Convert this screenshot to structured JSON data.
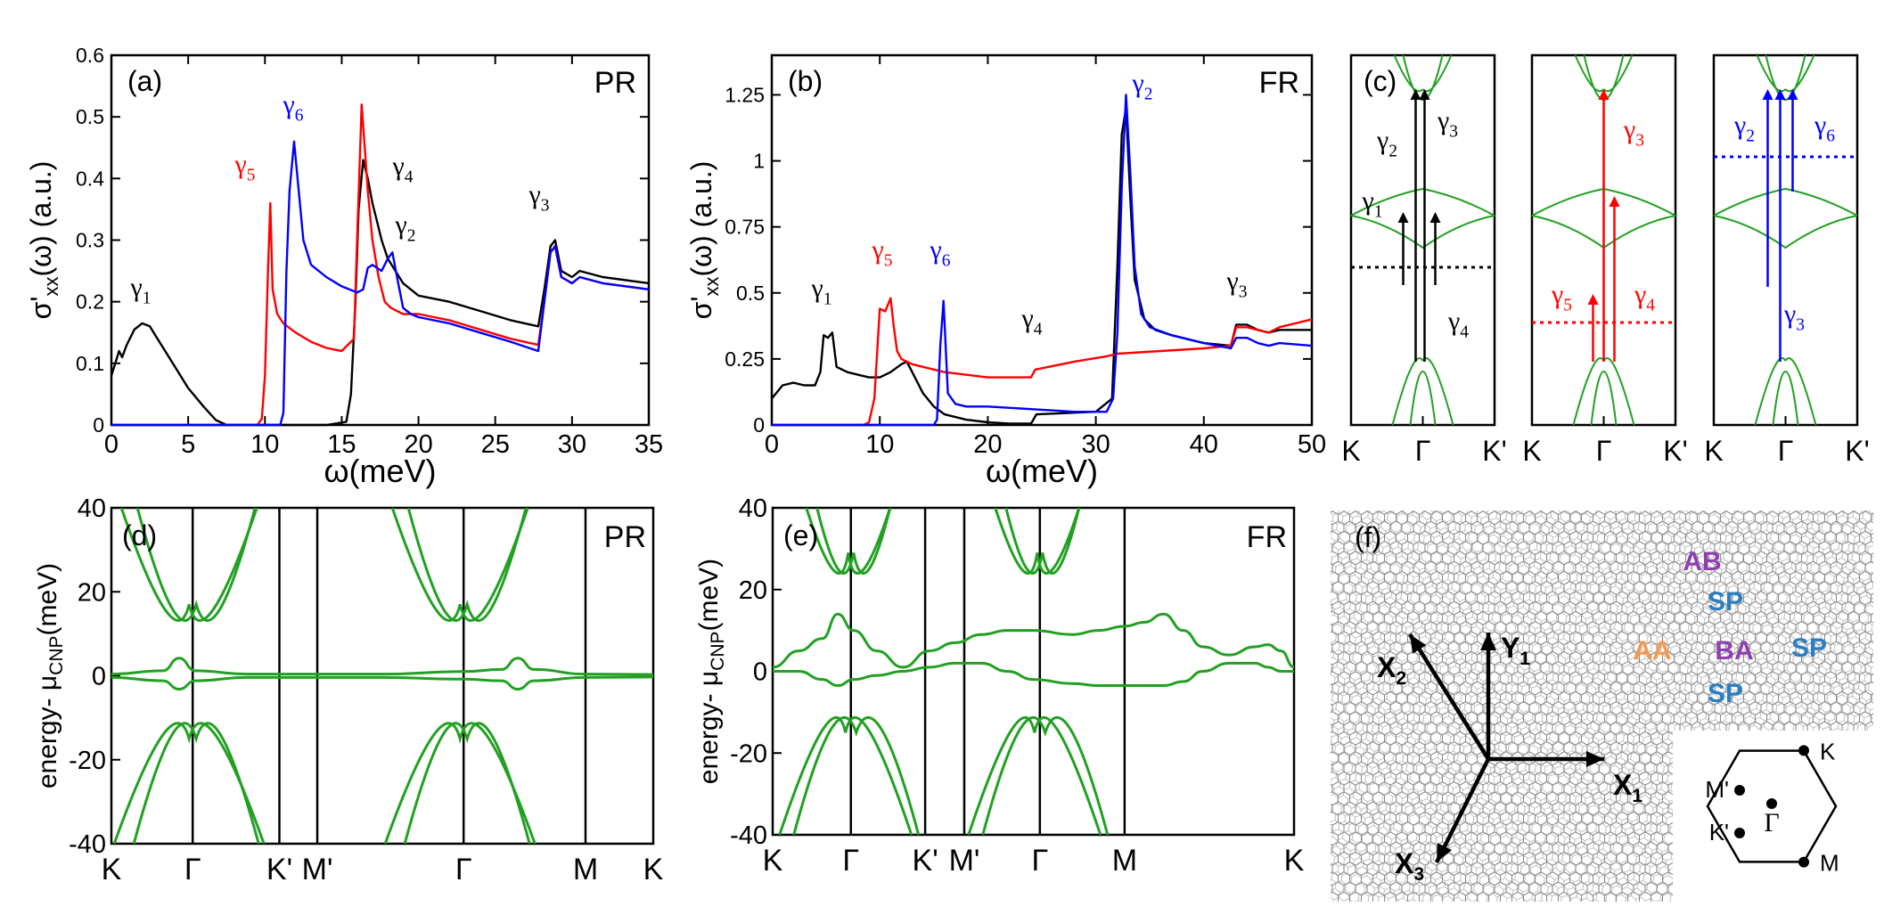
{
  "colors": {
    "black": "#000000",
    "red": "#ff0000",
    "blue": "#0000ff",
    "green": "#22a022",
    "purple": "#8e3fb0",
    "steel": "#2a7fc4",
    "orange": "#f39a52",
    "lattice": "#8a8a8a"
  },
  "chart_data": [
    {
      "id": "a",
      "type": "line",
      "panel_label": "(a)",
      "corner_label": "PR",
      "ylabel": "σ'xx(ω)  (a.u.)",
      "xlabel": "ω(meV)",
      "xlim": [
        0,
        35
      ],
      "ylim": [
        0,
        0.6
      ],
      "x_ticks": [
        "0",
        "5",
        "10",
        "15",
        "20",
        "25",
        "30",
        "35"
      ],
      "y_ticks": [
        "0",
        "0.1",
        "0.2",
        "0.3",
        "0.4",
        "0.5",
        "0.6"
      ],
      "annotations": [
        {
          "text": "γ1",
          "color": "black"
        },
        {
          "text": "γ5",
          "color": "red"
        },
        {
          "text": "γ6",
          "color": "blue"
        },
        {
          "text": "γ4",
          "color": "black"
        },
        {
          "text": "γ2",
          "color": "black"
        },
        {
          "text": "γ3",
          "color": "black"
        }
      ],
      "series": [
        {
          "name": "black",
          "color": "black",
          "x": [
            0,
            0.5,
            0.7,
            1.0,
            1.5,
            2.0,
            2.5,
            3.0,
            4.0,
            5.0,
            6.0,
            6.8,
            7.5,
            10,
            12,
            14,
            15.3,
            15.6,
            15.9,
            16.1,
            16.4,
            16.7,
            17.0,
            17.3,
            17.6,
            18.0,
            18.5,
            19.0,
            20,
            22,
            24,
            26,
            27.8,
            28.2,
            28.6,
            28.9,
            29.3,
            30.0,
            30.5,
            32,
            35
          ],
          "y": [
            0.08,
            0.12,
            0.11,
            0.13,
            0.155,
            0.165,
            0.16,
            0.14,
            0.1,
            0.06,
            0.03,
            0.008,
            0,
            0,
            0,
            0,
            0.005,
            0.05,
            0.2,
            0.35,
            0.43,
            0.4,
            0.36,
            0.33,
            0.3,
            0.27,
            0.25,
            0.23,
            0.21,
            0.2,
            0.185,
            0.17,
            0.16,
            0.22,
            0.29,
            0.3,
            0.25,
            0.24,
            0.25,
            0.24,
            0.23
          ]
        },
        {
          "name": "red",
          "color": "red",
          "x": [
            0,
            9.5,
            9.8,
            10.0,
            10.2,
            10.35,
            10.5,
            10.8,
            11.2,
            12,
            13,
            14,
            15,
            15.8,
            16.0,
            16.3,
            16.5,
            16.7,
            17.0,
            17.4,
            17.8,
            18.2,
            19,
            20,
            22,
            24,
            26,
            27.8,
            28.2,
            28.6,
            28.9,
            29.3,
            30.0,
            30.5,
            32,
            35
          ],
          "y": [
            0,
            0,
            0.01,
            0.08,
            0.25,
            0.36,
            0.22,
            0.18,
            0.165,
            0.15,
            0.135,
            0.125,
            0.12,
            0.14,
            0.3,
            0.52,
            0.45,
            0.38,
            0.3,
            0.24,
            0.2,
            0.19,
            0.18,
            0.18,
            0.17,
            0.155,
            0.14,
            0.13,
            0.2,
            0.28,
            0.29,
            0.24,
            0.23,
            0.24,
            0.23,
            0.22
          ]
        },
        {
          "name": "blue",
          "color": "blue",
          "x": [
            0,
            11.0,
            11.2,
            11.4,
            11.6,
            11.9,
            12.2,
            12.5,
            13,
            14,
            15,
            16,
            16.4,
            16.7,
            17.0,
            17.6,
            18.0,
            18.3,
            18.6,
            19.0,
            19.5,
            20,
            22,
            24,
            26,
            27.8,
            28.2,
            28.6,
            28.9,
            29.3,
            30.0,
            30.5,
            32,
            35
          ],
          "y": [
            0,
            0,
            0.02,
            0.25,
            0.38,
            0.46,
            0.38,
            0.3,
            0.26,
            0.24,
            0.225,
            0.215,
            0.22,
            0.255,
            0.26,
            0.25,
            0.27,
            0.28,
            0.24,
            0.19,
            0.18,
            0.175,
            0.165,
            0.15,
            0.135,
            0.12,
            0.2,
            0.28,
            0.29,
            0.24,
            0.23,
            0.24,
            0.23,
            0.22
          ]
        }
      ]
    },
    {
      "id": "b",
      "type": "line",
      "panel_label": "(b)",
      "corner_label": "FR",
      "ylabel": "σ'xx(ω)  (a.u.)",
      "xlabel": "ω(meV)",
      "xlim": [
        0,
        50
      ],
      "ylim": [
        0,
        1.4
      ],
      "x_ticks": [
        "0",
        "10",
        "20",
        "30",
        "40",
        "50"
      ],
      "y_ticks": [
        "0",
        "0.25",
        "0.5",
        "0.75",
        "1",
        "1.25"
      ],
      "annotations": [
        {
          "text": "γ1",
          "color": "black"
        },
        {
          "text": "γ5",
          "color": "red"
        },
        {
          "text": "γ6",
          "color": "blue"
        },
        {
          "text": "γ4",
          "color": "black"
        },
        {
          "text": "γ2",
          "color": "blue"
        },
        {
          "text": "γ3",
          "color": "black"
        }
      ],
      "series": [
        {
          "name": "black",
          "color": "black",
          "x": [
            0,
            1,
            2,
            3,
            4,
            4.5,
            4.8,
            5.2,
            5.6,
            6.0,
            7,
            8,
            9,
            10,
            11,
            12,
            12.5,
            13,
            14,
            15,
            16,
            18,
            20,
            22,
            24,
            24.5,
            30,
            31.5,
            32.0,
            32.4,
            32.8,
            33.2,
            33.6,
            34.5,
            35.5,
            37,
            40,
            42.5,
            43,
            44,
            45,
            46,
            47,
            50
          ],
          "y": [
            0.1,
            0.15,
            0.16,
            0.15,
            0.15,
            0.2,
            0.34,
            0.33,
            0.35,
            0.22,
            0.2,
            0.19,
            0.18,
            0.18,
            0.2,
            0.23,
            0.24,
            0.2,
            0.12,
            0.07,
            0.04,
            0.02,
            0.01,
            0.005,
            0.005,
            0.04,
            0.05,
            0.1,
            0.6,
            1.1,
            1.2,
            0.85,
            0.55,
            0.4,
            0.36,
            0.34,
            0.31,
            0.3,
            0.38,
            0.38,
            0.36,
            0.35,
            0.36,
            0.36
          ]
        },
        {
          "name": "red",
          "color": "red",
          "x": [
            0,
            8.5,
            9.0,
            9.5,
            10.0,
            10.5,
            11.0,
            11.3,
            11.6,
            12,
            13,
            14,
            16,
            20,
            24,
            24.4,
            28,
            31,
            32,
            40,
            42.5,
            43,
            44,
            45,
            46,
            47,
            50
          ],
          "y": [
            0,
            0,
            0.01,
            0.1,
            0.44,
            0.43,
            0.48,
            0.37,
            0.28,
            0.25,
            0.23,
            0.22,
            0.2,
            0.18,
            0.18,
            0.21,
            0.24,
            0.26,
            0.27,
            0.29,
            0.3,
            0.37,
            0.37,
            0.36,
            0.35,
            0.37,
            0.4
          ]
        },
        {
          "name": "blue",
          "color": "blue",
          "x": [
            0,
            15.0,
            15.3,
            15.6,
            15.9,
            16.3,
            17,
            18,
            20,
            24,
            28,
            31,
            31.6,
            32.0,
            32.4,
            32.8,
            33.2,
            33.6,
            34.2,
            35,
            37,
            40,
            42.5,
            43,
            44,
            45,
            46,
            47,
            50
          ],
          "y": [
            0,
            0,
            0.02,
            0.3,
            0.47,
            0.12,
            0.08,
            0.07,
            0.07,
            0.06,
            0.05,
            0.05,
            0.1,
            0.35,
            0.9,
            1.25,
            0.95,
            0.6,
            0.42,
            0.37,
            0.34,
            0.31,
            0.29,
            0.33,
            0.33,
            0.31,
            0.3,
            0.31,
            0.3
          ]
        }
      ]
    },
    {
      "id": "c",
      "type": "diagram",
      "panel_label": "(c)",
      "subpanels": [
        {
          "tick_labels": [
            "K",
            "Γ",
            "K'"
          ],
          "labels": [
            {
              "text": "γ2",
              "color": "black"
            },
            {
              "text": "γ3",
              "color": "black"
            },
            {
              "text": "γ1",
              "color": "black"
            },
            {
              "text": "γ4",
              "color": "black"
            }
          ]
        },
        {
          "tick_labels": [
            "K",
            "Γ",
            "K'"
          ],
          "labels": [
            {
              "text": "γ3",
              "color": "red"
            },
            {
              "text": "γ5",
              "color": "red"
            },
            {
              "text": "γ4",
              "color": "red"
            }
          ]
        },
        {
          "tick_labels": [
            "K",
            "Γ",
            "K'"
          ],
          "labels": [
            {
              "text": "γ2",
              "color": "blue"
            },
            {
              "text": "γ6",
              "color": "blue"
            },
            {
              "text": "γ3",
              "color": "blue"
            }
          ]
        }
      ]
    },
    {
      "id": "d",
      "type": "line",
      "panel_label": "(d)",
      "corner_label": "PR",
      "ylabel": "energy- μCNP(meV)",
      "ylim": [
        -40,
        40
      ],
      "y_ticks": [
        "40",
        "20",
        "0",
        "-20",
        "-40"
      ],
      "k_labels": [
        "K",
        "Γ",
        "K'",
        "M'",
        "Γ",
        "M",
        "K"
      ],
      "series": [
        {
          "name": "flat-upper",
          "color": "green",
          "x": [
            0,
            0.38,
            0.5,
            0.62,
            1.0,
            2.0,
            2.6,
            2.88,
            3.0,
            3.12,
            3.5,
            4.0
          ],
          "y": [
            0.4,
            1.2,
            4.2,
            1.2,
            0.4,
            0.4,
            1.0,
            1.5,
            4.2,
            1.5,
            0.4,
            0.3
          ]
        },
        {
          "name": "flat-lower",
          "color": "green",
          "x": [
            0,
            0.38,
            0.5,
            0.62,
            1.0,
            2.0,
            2.6,
            2.88,
            3.0,
            3.12,
            3.5,
            4.0
          ],
          "y": [
            -0.4,
            -1.2,
            -3.2,
            -1.2,
            -0.4,
            -0.4,
            -0.8,
            -1.2,
            -3.2,
            -1.2,
            -0.4,
            -0.3
          ]
        }
      ]
    },
    {
      "id": "e",
      "type": "line",
      "panel_label": "(e)",
      "corner_label": "FR",
      "ylabel": "energy- μCNP(meV)",
      "ylim": [
        -40,
        40
      ],
      "y_ticks": [
        "40",
        "20",
        "0",
        "-20",
        "-40"
      ],
      "k_labels": [
        "K",
        "Γ",
        "K'",
        "M'",
        "Γ",
        "M",
        "K"
      ],
      "series": [
        {
          "name": "flat-upper",
          "color": "green",
          "x": [
            0,
            0.2,
            0.38,
            0.5,
            0.62,
            0.8,
            1.0,
            1.2,
            1.4,
            1.6,
            1.8,
            2.0,
            2.3,
            2.5,
            2.7,
            2.85,
            3.0,
            3.15,
            3.3,
            3.5,
            3.7,
            3.8,
            3.9,
            4.0
          ],
          "y": [
            1,
            5,
            8,
            14,
            10,
            5,
            1,
            5,
            7,
            9,
            10,
            10,
            9,
            10,
            11,
            12,
            14,
            10,
            6,
            4,
            6,
            6.5,
            5,
            1
          ]
        },
        {
          "name": "flat-lower",
          "color": "green",
          "x": [
            0,
            0.2,
            0.38,
            0.5,
            0.62,
            0.8,
            1.0,
            1.2,
            1.4,
            1.6,
            1.8,
            2.0,
            2.3,
            2.5,
            2.7,
            2.85,
            3.0,
            3.15,
            3.3,
            3.5,
            3.7,
            3.8,
            3.9,
            4.0
          ],
          "y": [
            0,
            0,
            -2,
            -3.5,
            -2,
            -1,
            0,
            1,
            2,
            2,
            0,
            -2,
            -3,
            -3.5,
            -3.5,
            -3.5,
            -3.5,
            -2.5,
            0,
            2,
            2,
            1,
            0,
            0
          ]
        }
      ]
    },
    {
      "id": "f",
      "type": "diagram",
      "panel_label": "(f)",
      "stacking_labels": [
        {
          "text": "AB",
          "color": "purple"
        },
        {
          "text": "SP",
          "color": "steel"
        },
        {
          "text": "AA",
          "color": "orange"
        },
        {
          "text": "BA",
          "color": "purple"
        },
        {
          "text": "SP",
          "color": "steel"
        },
        {
          "text": "SP",
          "color": "steel"
        }
      ],
      "axis_labels": [
        "X1",
        "X2",
        "X3",
        "Y1"
      ],
      "bz_labels": [
        "K",
        "M",
        "M'",
        "K'",
        "Γ"
      ]
    }
  ]
}
